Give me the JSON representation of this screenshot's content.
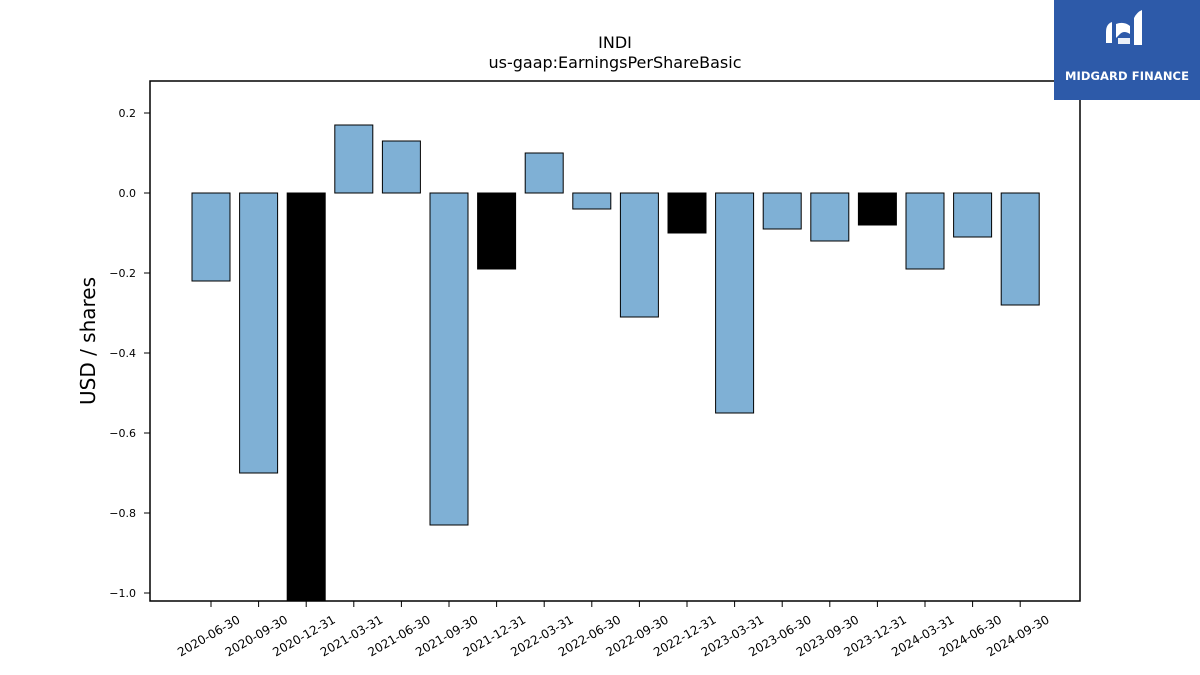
{
  "brand": {
    "name": "MIDGARD FINANCE",
    "colors": {
      "background": "#2d5aa9",
      "text": "#ffffff"
    }
  },
  "chart_data": {
    "type": "bar",
    "title": "INDI",
    "subtitle": "us-gaap:EarningsPerShareBasic",
    "xlabel": "",
    "ylabel": "USD / shares",
    "ylim": [
      -1.02,
      0.28
    ],
    "yticks": [
      0.2,
      0.0,
      -0.2,
      -0.4,
      -0.6,
      -0.8,
      -1.0
    ],
    "ytick_labels": [
      "0.2",
      "0.0",
      "−0.2",
      "−0.4",
      "−0.6",
      "−0.8",
      "−1.0"
    ],
    "categories": [
      "2020-06-30",
      "2020-09-30",
      "2020-12-31",
      "2021-03-31",
      "2021-06-30",
      "2021-09-30",
      "2021-12-31",
      "2022-03-31",
      "2022-06-30",
      "2022-09-30",
      "2022-12-31",
      "2023-03-31",
      "2023-06-30",
      "2023-09-30",
      "2023-12-31",
      "2024-03-31",
      "2024-06-30",
      "2024-09-30"
    ],
    "values": [
      -0.22,
      -0.7,
      -1.1,
      0.17,
      0.13,
      -0.83,
      -0.19,
      0.1,
      -0.04,
      -0.31,
      -0.1,
      -0.55,
      -0.09,
      -0.12,
      -0.08,
      -0.19,
      -0.11,
      -0.28
    ],
    "bar_colors": [
      "#7fb0d5",
      "#7fb0d5",
      "#000000",
      "#7fb0d5",
      "#7fb0d5",
      "#7fb0d5",
      "#000000",
      "#7fb0d5",
      "#7fb0d5",
      "#7fb0d5",
      "#000000",
      "#7fb0d5",
      "#7fb0d5",
      "#7fb0d5",
      "#000000",
      "#7fb0d5",
      "#7fb0d5",
      "#7fb0d5"
    ],
    "grid": false,
    "legend": "none"
  }
}
